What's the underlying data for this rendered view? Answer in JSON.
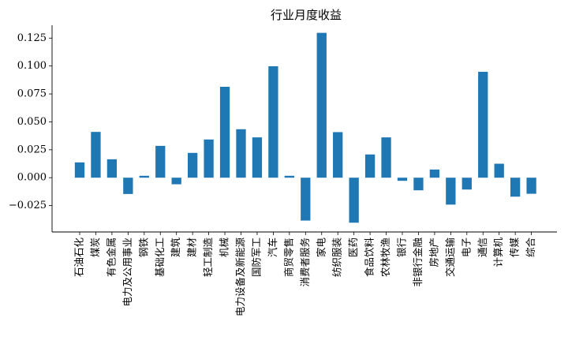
{
  "chart_data": {
    "type": "bar",
    "title": "行业月度收益",
    "xlabel": "",
    "ylabel": "",
    "ylim": [
      -0.0486,
      0.1365
    ],
    "yticks": [
      -0.025,
      0.0,
      0.025,
      0.05,
      0.075,
      0.1,
      0.125
    ],
    "ytick_labels": [
      "−0.025",
      "0.000",
      "0.025",
      "0.050",
      "0.075",
      "0.100",
      "0.125"
    ],
    "grid": false,
    "bar_color": "#1f77b4",
    "categories": [
      "石油石化",
      "煤炭",
      "有色金属",
      "电力及公用事业",
      "钢铁",
      "基础化工",
      "建筑",
      "建材",
      "轻工制造",
      "机械",
      "电力设备及新能源",
      "国防军工",
      "汽车",
      "商贸零售",
      "消费者服务",
      "家电",
      "纺织服装",
      "医药",
      "食品饮料",
      "农林牧渔",
      "银行",
      "非银行金融",
      "房地产",
      "交通运输",
      "电子",
      "通信",
      "计算机",
      "传媒",
      "综合"
    ],
    "values": [
      0.0137,
      0.041,
      0.0165,
      -0.0146,
      0.0017,
      0.0285,
      -0.0059,
      0.0222,
      0.0342,
      0.0814,
      0.0434,
      0.0361,
      0.0998,
      0.0017,
      -0.0384,
      0.1297,
      0.0408,
      -0.0403,
      0.0208,
      0.0361,
      -0.0028,
      -0.0113,
      0.0073,
      -0.0241,
      -0.0106,
      0.0948,
      0.0125,
      -0.017,
      -0.0144
    ]
  }
}
